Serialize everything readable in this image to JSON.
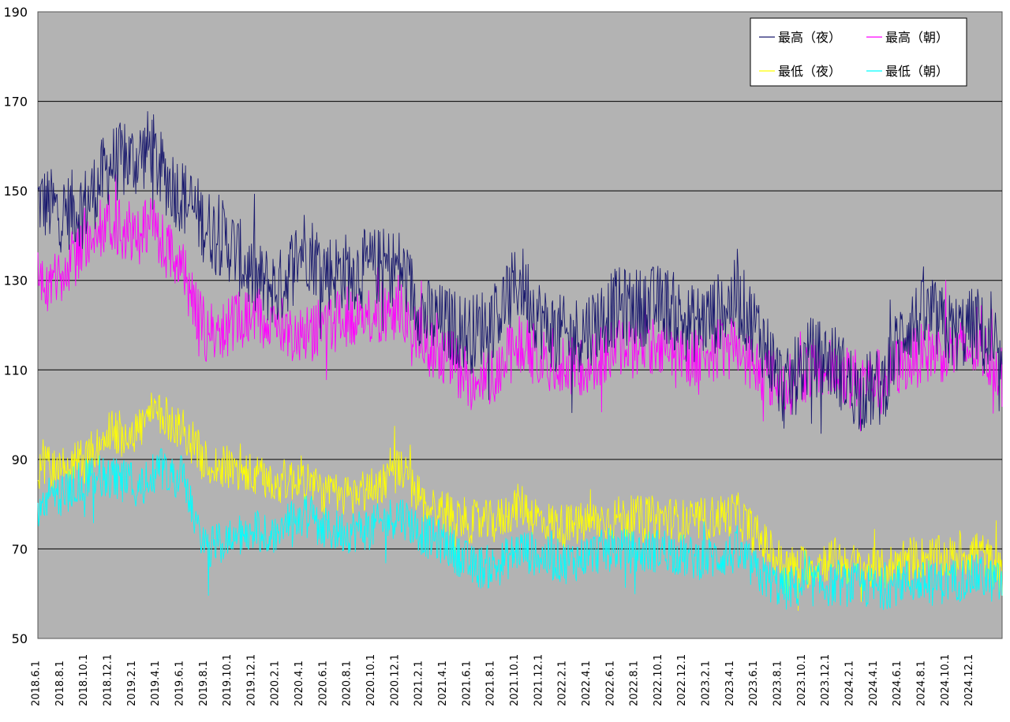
{
  "chart_data": {
    "type": "line",
    "title": "",
    "xlabel": "",
    "ylabel": "",
    "ylim": [
      50,
      190
    ],
    "y_ticks": [
      50,
      70,
      90,
      110,
      130,
      150,
      170,
      190
    ],
    "x_tick_labels": [
      "2018.6.1",
      "2018.8.1",
      "2018.10.1",
      "2018.12.1",
      "2019.2.1",
      "2019.4.1",
      "2019.6.1",
      "2019.8.1",
      "2019.10.1",
      "2019.12.1",
      "2020.2.1",
      "2020.4.1",
      "2020.6.1",
      "2020.8.1",
      "2020.10.1",
      "2020.12.1",
      "2021.2.1",
      "2021.4.1",
      "2021.6.1",
      "2021.8.1",
      "2021.10.1",
      "2021.12.1",
      "2022.2.1",
      "2022.4.1",
      "2022.6.1",
      "2022.8.1",
      "2022.10.1",
      "2022.12.1",
      "2023.2.1",
      "2023.4.1",
      "2023.6.1",
      "2023.8.1",
      "2023.10.1",
      "2023.12.1",
      "2024.2.1",
      "2024.4.1",
      "2024.6.1",
      "2024.8.1",
      "2024.10.1",
      "2024.12.1"
    ],
    "x_range": [
      "2018-06-01",
      "2025-01-31"
    ],
    "grid": true,
    "legend_placement": "top-right",
    "plot_background": "#b3b3b3",
    "series": [
      {
        "name": "最高（夜）",
        "color": "#1a1a6e",
        "dates": [
          "2018-06-01",
          "2018-08-01",
          "2018-10-01",
          "2018-12-01",
          "2019-02-01",
          "2019-03-15",
          "2019-04-01",
          "2019-06-01",
          "2019-08-01",
          "2019-10-01",
          "2019-12-01",
          "2020-02-01",
          "2020-04-01",
          "2020-06-01",
          "2020-08-01",
          "2020-10-01",
          "2020-12-01",
          "2021-02-01",
          "2021-04-01",
          "2021-06-01",
          "2021-08-01",
          "2021-10-01",
          "2021-12-01",
          "2022-02-01",
          "2022-04-01",
          "2022-06-01",
          "2022-08-01",
          "2022-10-01",
          "2022-12-01",
          "2023-02-01",
          "2023-04-01",
          "2023-06-01",
          "2023-08-01",
          "2023-10-01",
          "2023-12-01",
          "2024-02-01",
          "2024-04-01",
          "2024-06-01",
          "2024-08-01",
          "2024-10-01",
          "2024-12-01",
          "2025-01-31"
        ],
        "values": [
          148,
          145,
          147,
          156,
          157,
          160,
          155,
          149,
          142,
          138,
          130,
          128,
          138,
          132,
          132,
          133,
          133,
          122,
          120,
          118,
          122,
          130,
          120,
          117,
          120,
          124,
          124,
          125,
          120,
          122,
          126,
          118,
          105,
          113,
          112,
          105,
          106,
          120,
          122,
          118,
          120,
          108
        ],
        "amplitude": 9
      },
      {
        "name": "最高（朝）",
        "color": "#ff00ff",
        "dates": [
          "2018-06-01",
          "2018-08-01",
          "2018-10-01",
          "2018-12-01",
          "2019-02-01",
          "2019-03-15",
          "2019-04-01",
          "2019-06-01",
          "2019-08-01",
          "2019-10-01",
          "2019-12-01",
          "2020-02-01",
          "2020-04-01",
          "2020-06-01",
          "2020-08-01",
          "2020-10-01",
          "2020-12-01",
          "2021-02-01",
          "2021-04-01",
          "2021-06-01",
          "2021-08-01",
          "2021-10-01",
          "2021-12-01",
          "2022-02-01",
          "2022-04-01",
          "2022-06-01",
          "2022-08-01",
          "2022-10-01",
          "2022-12-01",
          "2023-02-01",
          "2023-04-01",
          "2023-06-01",
          "2023-08-01",
          "2023-10-01",
          "2023-12-01",
          "2024-02-01",
          "2024-04-01",
          "2024-06-01",
          "2024-08-01",
          "2024-10-01",
          "2024-12-01",
          "2025-01-31"
        ],
        "values": [
          130,
          130,
          140,
          143,
          140,
          142,
          140,
          132,
          118,
          120,
          122,
          120,
          118,
          120,
          122,
          123,
          123,
          116,
          113,
          107,
          110,
          116,
          112,
          110,
          112,
          115,
          115,
          116,
          113,
          114,
          115,
          110,
          106,
          110,
          110,
          108,
          108,
          112,
          114,
          114,
          115,
          110
        ],
        "amplitude": 7
      },
      {
        "name": "最低（夜）",
        "color": "#ffff00",
        "dates": [
          "2018-06-01",
          "2018-08-01",
          "2018-10-01",
          "2018-12-01",
          "2019-02-01",
          "2019-03-15",
          "2019-04-01",
          "2019-06-01",
          "2019-08-01",
          "2019-10-01",
          "2019-12-01",
          "2020-02-01",
          "2020-04-01",
          "2020-06-01",
          "2020-08-01",
          "2020-10-01",
          "2020-12-01",
          "2021-02-01",
          "2021-04-01",
          "2021-06-01",
          "2021-08-01",
          "2021-10-01",
          "2021-12-01",
          "2022-02-01",
          "2022-04-01",
          "2022-06-01",
          "2022-08-01",
          "2022-10-01",
          "2022-12-01",
          "2023-02-01",
          "2023-04-01",
          "2023-06-01",
          "2023-08-01",
          "2023-10-01",
          "2023-12-01",
          "2024-02-01",
          "2024-04-01",
          "2024-06-01",
          "2024-08-01",
          "2024-10-01",
          "2024-12-01",
          "2025-01-31"
        ],
        "values": [
          88,
          88,
          90,
          96,
          96,
          100,
          100,
          97,
          89,
          88,
          86,
          85,
          86,
          82,
          82,
          84,
          88,
          80,
          78,
          76,
          76,
          80,
          76,
          75,
          76,
          77,
          77,
          77,
          76,
          77,
          78,
          72,
          66,
          66,
          68,
          66,
          65,
          68,
          68,
          68,
          70,
          64
        ],
        "amplitude": 5
      },
      {
        "name": "最低（朝）",
        "color": "#00ffff",
        "dates": [
          "2018-06-01",
          "2018-08-01",
          "2018-10-01",
          "2018-12-01",
          "2019-02-01",
          "2019-03-15",
          "2019-04-01",
          "2019-06-01",
          "2019-08-01",
          "2019-10-01",
          "2019-12-01",
          "2020-02-01",
          "2020-04-01",
          "2020-06-01",
          "2020-08-01",
          "2020-10-01",
          "2020-12-01",
          "2021-02-01",
          "2021-04-01",
          "2021-06-01",
          "2021-08-01",
          "2021-10-01",
          "2021-12-01",
          "2022-02-01",
          "2022-04-01",
          "2022-06-01",
          "2022-08-01",
          "2022-10-01",
          "2022-12-01",
          "2023-02-01",
          "2023-04-01",
          "2023-06-01",
          "2023-08-01",
          "2023-10-01",
          "2023-12-01",
          "2024-02-01",
          "2024-04-01",
          "2024-06-01",
          "2024-08-01",
          "2024-10-01",
          "2024-12-01",
          "2025-01-31"
        ],
        "values": [
          80,
          82,
          86,
          86,
          84,
          86,
          88,
          86,
          70,
          72,
          74,
          74,
          78,
          74,
          74,
          75,
          78,
          73,
          71,
          66,
          66,
          70,
          68,
          67,
          69,
          70,
          69,
          70,
          68,
          68,
          69,
          64,
          61,
          62,
          62,
          62,
          61,
          63,
          62,
          63,
          64,
          62
        ],
        "amplitude": 5
      }
    ]
  }
}
